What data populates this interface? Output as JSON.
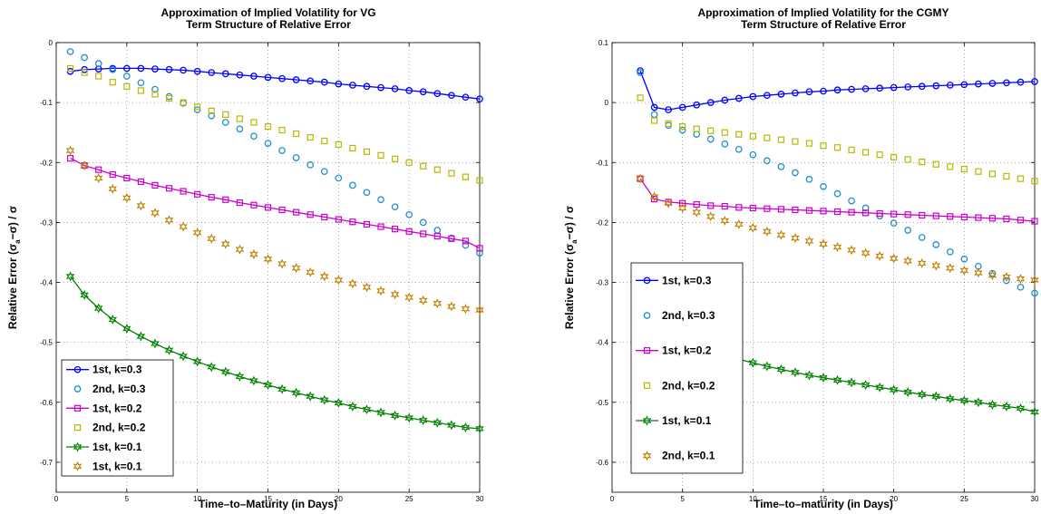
{
  "chart_data": [
    {
      "type": "line",
      "title_lines": [
        "Approximation of Implied Volatility for VG",
        "Term Structure of Relative Error"
      ],
      "xlabel": "Time–to–Maturity (in Days)",
      "ylabel_main": "Relative Error",
      "ylabel_formula": "(σ",
      "ylabel_sub": "a",
      "ylabel_rest": "−σ) / σ",
      "xlim": [
        0,
        30
      ],
      "ylim": [
        -0.75,
        0
      ],
      "xticks": [
        0,
        5,
        10,
        15,
        20,
        25,
        30
      ],
      "xtick_labels": [
        "0",
        "5",
        "10",
        "15",
        "20",
        "25",
        "30"
      ],
      "yticks": [
        0,
        -0.1,
        -0.2,
        -0.3,
        -0.4,
        -0.5,
        -0.6,
        -0.7
      ],
      "ytick_labels": [
        "0",
        "-0.1",
        "-0.2",
        "-0.3",
        "-0.4",
        "-0.5",
        "-0.6",
        "-0.7"
      ],
      "grid": true,
      "legend_position": "bottom-left",
      "x": [
        1,
        2,
        3,
        4,
        5,
        6,
        7,
        8,
        9,
        10,
        11,
        12,
        13,
        14,
        15,
        16,
        17,
        18,
        19,
        20,
        21,
        22,
        23,
        24,
        25,
        26,
        27,
        28,
        29,
        30
      ],
      "series": [
        {
          "name": "1st, k=0.3",
          "color": "#0000ff",
          "line": true,
          "marker": "circle",
          "values": [
            -0.048,
            -0.045,
            -0.044,
            -0.043,
            -0.043,
            -0.043,
            -0.044,
            -0.045,
            -0.046,
            -0.048,
            -0.05,
            -0.052,
            -0.054,
            -0.056,
            -0.058,
            -0.06,
            -0.062,
            -0.064,
            -0.066,
            -0.069,
            -0.071,
            -0.073,
            -0.075,
            -0.077,
            -0.08,
            -0.082,
            -0.085,
            -0.088,
            -0.091,
            -0.094
          ]
        },
        {
          "name": "2nd, k=0.3",
          "color": "#1e90d0",
          "line": false,
          "marker": "circle",
          "values": [
            -0.015,
            -0.025,
            -0.035,
            -0.045,
            -0.056,
            -0.067,
            -0.078,
            -0.09,
            -0.101,
            -0.112,
            -0.122,
            -0.133,
            -0.144,
            -0.156,
            -0.168,
            -0.18,
            -0.192,
            -0.204,
            -0.215,
            -0.226,
            -0.238,
            -0.25,
            -0.262,
            -0.274,
            -0.287,
            -0.3,
            -0.313,
            -0.326,
            -0.338,
            -0.351
          ]
        },
        {
          "name": "1st, k=0.2",
          "color": "#cc00cc",
          "line": true,
          "marker": "square",
          "values": [
            -0.193,
            -0.205,
            -0.212,
            -0.22,
            -0.226,
            -0.232,
            -0.238,
            -0.243,
            -0.248,
            -0.253,
            -0.258,
            -0.262,
            -0.267,
            -0.271,
            -0.275,
            -0.279,
            -0.283,
            -0.287,
            -0.291,
            -0.295,
            -0.299,
            -0.303,
            -0.307,
            -0.311,
            -0.315,
            -0.319,
            -0.323,
            -0.327,
            -0.331,
            -0.343
          ]
        },
        {
          "name": "2nd, k=0.2",
          "color": "#b8b800",
          "line": false,
          "marker": "square",
          "values": [
            -0.043,
            -0.05,
            -0.056,
            -0.066,
            -0.073,
            -0.08,
            -0.086,
            -0.093,
            -0.1,
            -0.107,
            -0.114,
            -0.12,
            -0.127,
            -0.133,
            -0.14,
            -0.146,
            -0.152,
            -0.158,
            -0.164,
            -0.17,
            -0.176,
            -0.182,
            -0.188,
            -0.194,
            -0.2,
            -0.206,
            -0.212,
            -0.218,
            -0.224,
            -0.23
          ]
        },
        {
          "name": "1st, k=0.1",
          "color": "#008000",
          "line": true,
          "marker": "star",
          "values": [
            -0.39,
            -0.421,
            -0.443,
            -0.462,
            -0.477,
            -0.49,
            -0.502,
            -0.513,
            -0.523,
            -0.532,
            -0.541,
            -0.549,
            -0.557,
            -0.564,
            -0.571,
            -0.578,
            -0.584,
            -0.59,
            -0.596,
            -0.601,
            -0.607,
            -0.612,
            -0.617,
            -0.622,
            -0.626,
            -0.63,
            -0.634,
            -0.638,
            -0.642,
            -0.644
          ]
        },
        {
          "name": "1st, k=0.1",
          "color": "#c08000",
          "line": false,
          "marker": "star",
          "values": [
            -0.18,
            -0.205,
            -0.226,
            -0.244,
            -0.259,
            -0.272,
            -0.284,
            -0.296,
            -0.307,
            -0.317,
            -0.327,
            -0.336,
            -0.345,
            -0.353,
            -0.361,
            -0.369,
            -0.376,
            -0.383,
            -0.39,
            -0.396,
            -0.402,
            -0.408,
            -0.414,
            -0.42,
            -0.425,
            -0.43,
            -0.435,
            -0.44,
            -0.444,
            -0.446
          ]
        }
      ]
    },
    {
      "type": "line",
      "title_lines": [
        "Approximation of Implied Volatility for the CGMY",
        "Term Structure of Relative Error"
      ],
      "xlabel": "Time–to–maturity (in Days)",
      "ylabel_main": "Relative Error",
      "ylabel_formula": "(σ",
      "ylabel_sub": "a",
      "ylabel_rest": "−σ) / σ",
      "xlim": [
        0,
        30
      ],
      "ylim": [
        -0.65,
        0.1
      ],
      "xticks": [
        0,
        5,
        10,
        15,
        20,
        25,
        30
      ],
      "xtick_labels": [
        "0",
        "5",
        "10",
        "15",
        "20",
        "25",
        "30"
      ],
      "yticks": [
        0.1,
        0,
        -0.1,
        -0.2,
        -0.3,
        -0.4,
        -0.5,
        -0.6
      ],
      "ytick_labels": [
        "0.1",
        "0",
        "-0.1",
        "-0.2",
        "-0.3",
        "-0.4",
        "-0.5",
        "-0.6"
      ],
      "grid": true,
      "legend_position": "bottom-left",
      "x": [
        2,
        3,
        4,
        5,
        6,
        7,
        8,
        9,
        10,
        11,
        12,
        13,
        14,
        15,
        16,
        17,
        18,
        19,
        20,
        21,
        22,
        23,
        24,
        25,
        26,
        27,
        28,
        29,
        30
      ],
      "series": [
        {
          "name": "1st, k=0.3",
          "color": "#0000ff",
          "line": true,
          "marker": "circle",
          "values": [
            0.053,
            -0.008,
            -0.012,
            -0.008,
            -0.004,
            0.0,
            0.004,
            0.007,
            0.01,
            0.012,
            0.014,
            0.016,
            0.018,
            0.019,
            0.021,
            0.022,
            0.023,
            0.024,
            0.025,
            0.026,
            0.027,
            0.028,
            0.029,
            0.03,
            0.031,
            0.032,
            0.033,
            0.034,
            0.035
          ]
        },
        {
          "name": "2nd, k=0.3",
          "color": "#1e90d0",
          "line": false,
          "marker": "circle",
          "values": [
            0.05,
            -0.02,
            -0.038,
            -0.046,
            -0.053,
            -0.061,
            -0.069,
            -0.078,
            -0.087,
            -0.097,
            -0.107,
            -0.117,
            -0.128,
            -0.14,
            -0.152,
            -0.164,
            -0.176,
            -0.189,
            -0.201,
            -0.213,
            -0.225,
            -0.237,
            -0.249,
            -0.261,
            -0.273,
            -0.285,
            -0.297,
            -0.308,
            -0.318
          ]
        },
        {
          "name": "1st, k=0.2",
          "color": "#cc00cc",
          "line": true,
          "marker": "square",
          "values": [
            -0.127,
            -0.161,
            -0.166,
            -0.168,
            -0.17,
            -0.172,
            -0.173,
            -0.175,
            -0.176,
            -0.177,
            -0.178,
            -0.179,
            -0.18,
            -0.181,
            -0.182,
            -0.183,
            -0.184,
            -0.185,
            -0.186,
            -0.187,
            -0.188,
            -0.189,
            -0.19,
            -0.191,
            -0.192,
            -0.193,
            -0.194,
            -0.196,
            -0.198
          ]
        },
        {
          "name": "2nd, k=0.2",
          "color": "#b8b800",
          "line": false,
          "marker": "square",
          "values": [
            0.008,
            -0.03,
            -0.035,
            -0.04,
            -0.044,
            -0.047,
            -0.05,
            -0.053,
            -0.056,
            -0.059,
            -0.062,
            -0.065,
            -0.068,
            -0.072,
            -0.075,
            -0.079,
            -0.083,
            -0.087,
            -0.091,
            -0.095,
            -0.099,
            -0.103,
            -0.107,
            -0.111,
            -0.115,
            -0.119,
            -0.123,
            -0.127,
            -0.131
          ]
        },
        {
          "name": "1st, k=0.1",
          "color": "#008000",
          "line": true,
          "marker": "star",
          "values": [
            -0.34,
            -0.369,
            -0.384,
            -0.396,
            -0.406,
            -0.414,
            -0.421,
            -0.428,
            -0.434,
            -0.44,
            -0.445,
            -0.45,
            -0.455,
            -0.459,
            -0.463,
            -0.467,
            -0.471,
            -0.475,
            -0.479,
            -0.483,
            -0.487,
            -0.49,
            -0.494,
            -0.497,
            -0.5,
            -0.504,
            -0.507,
            -0.51,
            -0.516
          ]
        },
        {
          "name": "2nd, k=0.1",
          "color": "#c08000",
          "line": false,
          "marker": "star",
          "values": [
            -0.127,
            -0.157,
            -0.168,
            -0.176,
            -0.183,
            -0.19,
            -0.197,
            -0.203,
            -0.209,
            -0.215,
            -0.221,
            -0.226,
            -0.231,
            -0.236,
            -0.241,
            -0.246,
            -0.251,
            -0.256,
            -0.26,
            -0.264,
            -0.268,
            -0.272,
            -0.276,
            -0.28,
            -0.284,
            -0.288,
            -0.291,
            -0.294,
            -0.296
          ]
        }
      ]
    }
  ]
}
